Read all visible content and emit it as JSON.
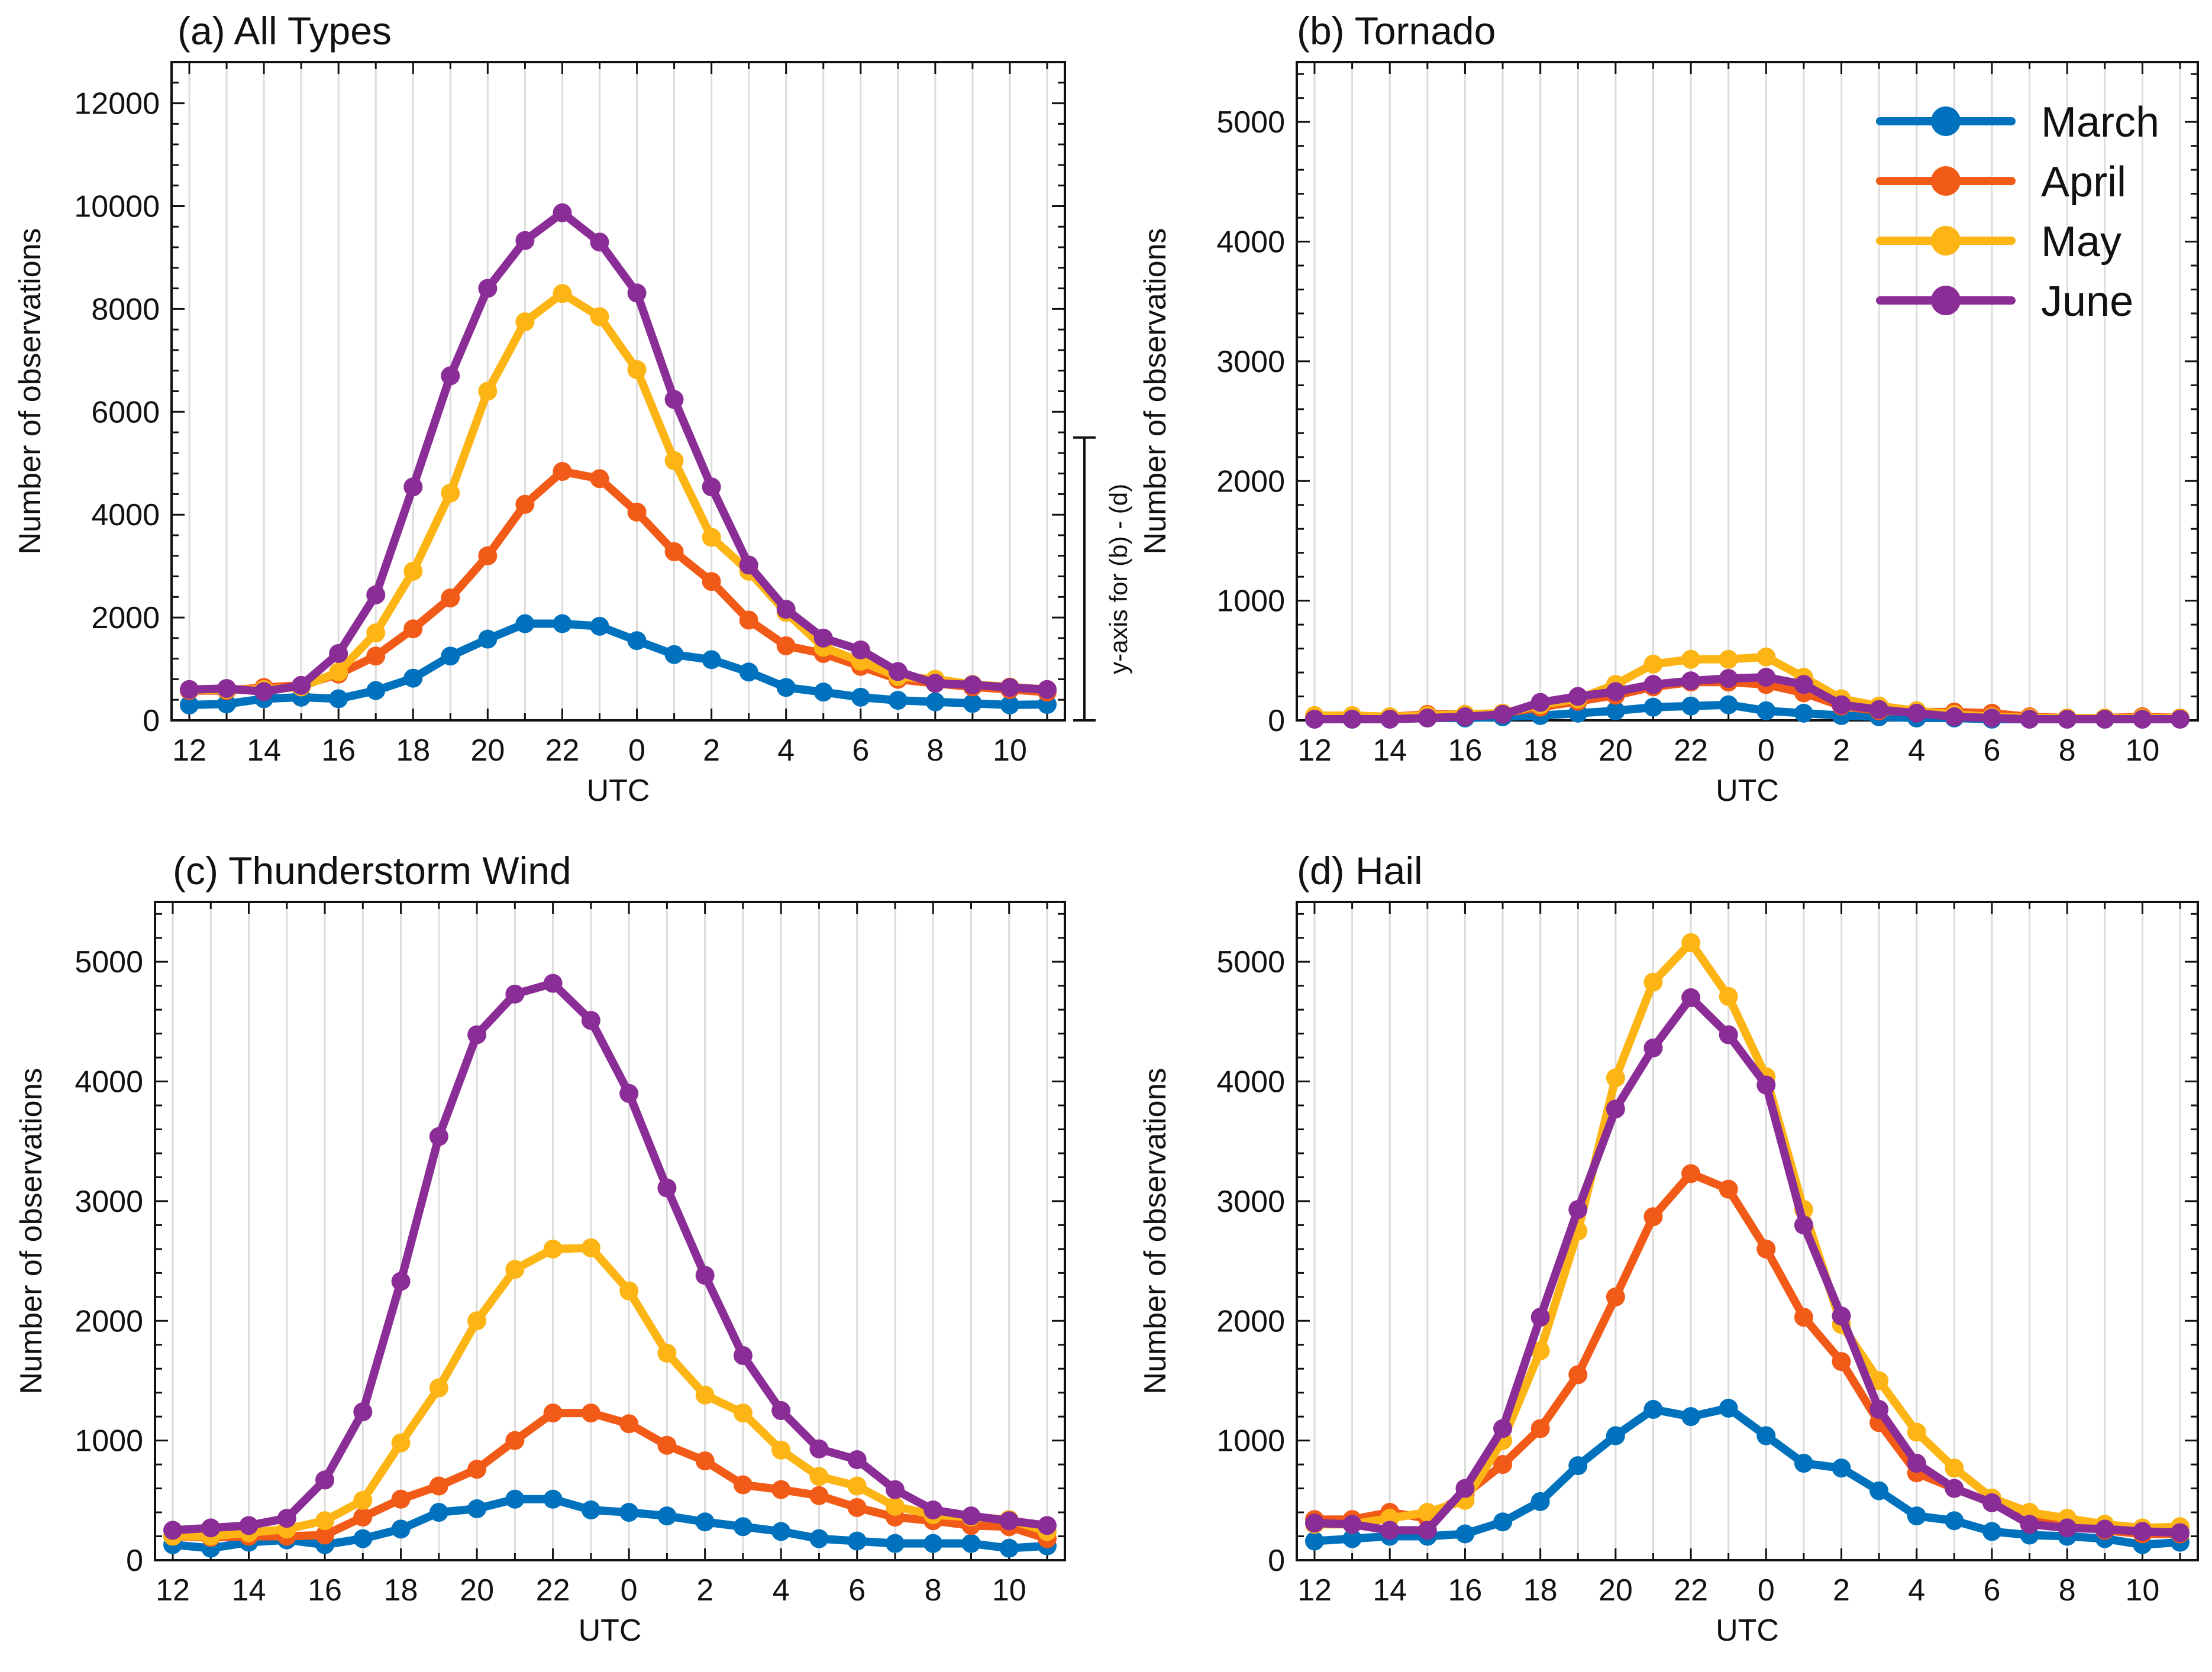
{
  "figure": {
    "legend": [
      {
        "name": "March",
        "color": "#0072BD"
      },
      {
        "name": "April",
        "color": "#F25A17"
      },
      {
        "name": "May",
        "color": "#FDB515"
      },
      {
        "name": "June",
        "color": "#8B2D96"
      }
    ],
    "shared_axis_note": "y-axis for (b) - (d)"
  },
  "chart_data": [
    {
      "type": "line",
      "title": "(a) All Types",
      "xlabel": "UTC",
      "ylabel": "Number of observations",
      "x": [
        "12",
        "13",
        "14",
        "15",
        "16",
        "17",
        "18",
        "19",
        "20",
        "21",
        "22",
        "23",
        "0",
        "1",
        "2",
        "3",
        "4",
        "5",
        "6",
        "7",
        "8",
        "9",
        "10",
        "11"
      ],
      "xticks": [
        "12",
        "14",
        "16",
        "18",
        "20",
        "22",
        "0",
        "2",
        "4",
        "6",
        "8",
        "10"
      ],
      "yticks": [
        0,
        2000,
        4000,
        6000,
        8000,
        10000,
        12000
      ],
      "ylim": [
        0,
        12800
      ],
      "grid": "vertical",
      "series": [
        {
          "name": "March",
          "values": [
            300,
            320,
            420,
            450,
            420,
            580,
            820,
            1250,
            1580,
            1880,
            1880,
            1830,
            1550,
            1280,
            1180,
            940,
            640,
            550,
            450,
            390,
            360,
            330,
            300,
            310
          ]
        },
        {
          "name": "April",
          "values": [
            580,
            580,
            640,
            680,
            900,
            1250,
            1780,
            2380,
            3200,
            4200,
            4840,
            4700,
            4050,
            3280,
            2700,
            1950,
            1450,
            1300,
            1050,
            800,
            720,
            650,
            600,
            550
          ]
        },
        {
          "name": "May",
          "values": [
            600,
            600,
            600,
            650,
            940,
            1700,
            2900,
            4420,
            6400,
            7750,
            8300,
            7850,
            6820,
            5050,
            3560,
            2900,
            2100,
            1420,
            1150,
            850,
            800,
            700,
            650,
            600
          ]
        },
        {
          "name": "June",
          "values": [
            600,
            620,
            560,
            680,
            1300,
            2440,
            4540,
            6700,
            8400,
            9330,
            9870,
            9300,
            8310,
            6240,
            4540,
            3020,
            2160,
            1600,
            1370,
            950,
            720,
            690,
            640,
            600
          ]
        }
      ]
    },
    {
      "type": "line",
      "title": "(b) Tornado",
      "xlabel": "UTC",
      "ylabel": "Number of observations",
      "x": [
        "12",
        "13",
        "14",
        "15",
        "16",
        "17",
        "18",
        "19",
        "20",
        "21",
        "22",
        "23",
        "0",
        "1",
        "2",
        "3",
        "4",
        "5",
        "6",
        "7",
        "8",
        "9",
        "10",
        "11"
      ],
      "xticks": [
        "12",
        "14",
        "16",
        "18",
        "20",
        "22",
        "0",
        "2",
        "4",
        "6",
        "8",
        "10"
      ],
      "yticks": [
        0,
        1000,
        2000,
        3000,
        4000,
        5000
      ],
      "ylim": [
        0,
        5500
      ],
      "grid": "vertical",
      "legend_position": "top-right",
      "series": [
        {
          "name": "March",
          "values": [
            10,
            10,
            10,
            20,
            20,
            30,
            40,
            60,
            80,
            110,
            120,
            130,
            80,
            60,
            40,
            30,
            20,
            20,
            10,
            10,
            10,
            10,
            10,
            10
          ]
        },
        {
          "name": "April",
          "values": [
            20,
            20,
            30,
            50,
            50,
            60,
            110,
            160,
            210,
            280,
            320,
            320,
            300,
            230,
            120,
            80,
            70,
            70,
            60,
            30,
            20,
            20,
            30,
            20
          ]
        },
        {
          "name": "May",
          "values": [
            40,
            40,
            30,
            40,
            50,
            60,
            130,
            180,
            300,
            470,
            510,
            510,
            530,
            360,
            180,
            120,
            80,
            50,
            30,
            20,
            20,
            20,
            20,
            20
          ]
        },
        {
          "name": "June",
          "values": [
            10,
            10,
            10,
            20,
            30,
            50,
            150,
            200,
            240,
            300,
            330,
            350,
            360,
            300,
            130,
            90,
            60,
            30,
            20,
            10,
            10,
            10,
            10,
            10
          ]
        }
      ]
    },
    {
      "type": "line",
      "title": "(c) Thunderstorm Wind",
      "xlabel": "UTC",
      "ylabel": "Number of observations",
      "x": [
        "12",
        "13",
        "14",
        "15",
        "16",
        "17",
        "18",
        "19",
        "20",
        "21",
        "22",
        "23",
        "0",
        "1",
        "2",
        "3",
        "4",
        "5",
        "6",
        "7",
        "8",
        "9",
        "10",
        "11"
      ],
      "xticks": [
        "12",
        "14",
        "16",
        "18",
        "20",
        "22",
        "0",
        "2",
        "4",
        "6",
        "8",
        "10"
      ],
      "yticks": [
        0,
        1000,
        2000,
        3000,
        4000,
        5000
      ],
      "ylim": [
        0,
        5500
      ],
      "grid": "vertical",
      "series": [
        {
          "name": "March",
          "values": [
            130,
            100,
            150,
            170,
            130,
            180,
            260,
            400,
            430,
            510,
            510,
            420,
            400,
            370,
            320,
            280,
            240,
            180,
            160,
            140,
            140,
            140,
            100,
            120
          ]
        },
        {
          "name": "April",
          "values": [
            200,
            190,
            200,
            200,
            210,
            360,
            510,
            620,
            760,
            1000,
            1230,
            1230,
            1140,
            960,
            830,
            630,
            590,
            540,
            440,
            360,
            330,
            290,
            280,
            180
          ]
        },
        {
          "name": "May",
          "values": [
            200,
            200,
            230,
            260,
            330,
            500,
            980,
            1440,
            2000,
            2430,
            2600,
            2610,
            2250,
            1730,
            1380,
            1230,
            920,
            700,
            620,
            450,
            380,
            360,
            340,
            240
          ]
        },
        {
          "name": "June",
          "values": [
            250,
            270,
            290,
            350,
            670,
            1240,
            2330,
            3540,
            4390,
            4730,
            4820,
            4510,
            3900,
            3110,
            2380,
            1710,
            1250,
            930,
            840,
            590,
            420,
            370,
            330,
            290
          ]
        }
      ]
    },
    {
      "type": "line",
      "title": "(d) Hail",
      "xlabel": "UTC",
      "ylabel": "Number of observations",
      "x": [
        "12",
        "13",
        "14",
        "15",
        "16",
        "17",
        "18",
        "19",
        "20",
        "21",
        "22",
        "23",
        "0",
        "1",
        "2",
        "3",
        "4",
        "5",
        "6",
        "7",
        "8",
        "9",
        "10",
        "11"
      ],
      "xticks": [
        "12",
        "14",
        "16",
        "18",
        "20",
        "22",
        "0",
        "2",
        "4",
        "6",
        "8",
        "10"
      ],
      "yticks": [
        0,
        1000,
        2000,
        3000,
        4000,
        5000
      ],
      "ylim": [
        0,
        5500
      ],
      "grid": "vertical",
      "series": [
        {
          "name": "March",
          "values": [
            160,
            180,
            200,
            200,
            220,
            320,
            490,
            790,
            1040,
            1260,
            1200,
            1270,
            1040,
            810,
            770,
            580,
            370,
            330,
            240,
            210,
            200,
            180,
            130,
            150
          ]
        },
        {
          "name": "April",
          "values": [
            340,
            340,
            400,
            350,
            550,
            800,
            1100,
            1550,
            2200,
            2870,
            3230,
            3100,
            2600,
            2030,
            1660,
            1150,
            730,
            600,
            480,
            370,
            300,
            250,
            220,
            220
          ]
        },
        {
          "name": "May",
          "values": [
            300,
            300,
            350,
            400,
            500,
            1000,
            1750,
            2750,
            4030,
            4830,
            5160,
            4710,
            4040,
            2930,
            1970,
            1500,
            1070,
            770,
            520,
            400,
            350,
            300,
            270,
            280
          ]
        },
        {
          "name": "June",
          "values": [
            310,
            300,
            250,
            250,
            600,
            1100,
            2030,
            2930,
            3770,
            4280,
            4700,
            4390,
            3970,
            2800,
            2040,
            1260,
            810,
            600,
            480,
            300,
            270,
            260,
            240,
            230
          ]
        }
      ]
    }
  ]
}
